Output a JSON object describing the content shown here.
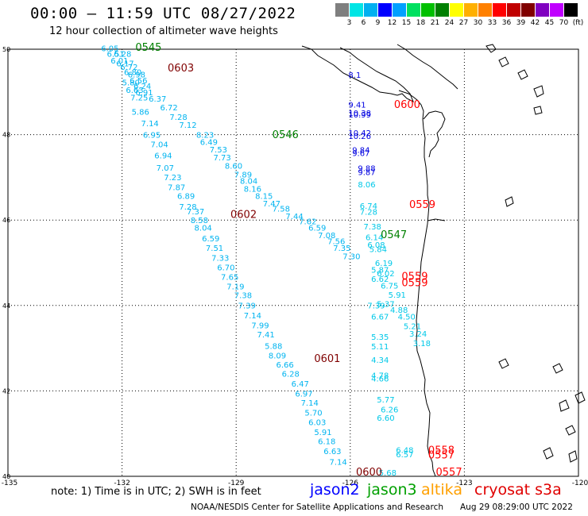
{
  "title": "00:00 – 11:59 UTC 08/27/2022",
  "subtitle": "12 hour collection of altimeter wave heights",
  "colorbar": {
    "colors": [
      "#7f7f7f",
      "#00e5e5",
      "#00b0f0",
      "#0000ff",
      "#00a0ff",
      "#00e060",
      "#00c000",
      "#008000",
      "#ffff00",
      "#ffb000",
      "#ff8000",
      "#ff0000",
      "#c00000",
      "#800000",
      "#8000c0",
      "#c000ff",
      "#000000"
    ],
    "labels": [
      "3",
      "6",
      "9",
      "12",
      "15",
      "18",
      "21",
      "24",
      "27",
      "30",
      "33",
      "36",
      "39",
      "42",
      "45",
      "70",
      "(ft)"
    ]
  },
  "axes": {
    "lon_labels": [
      "-135",
      "-132",
      "-129",
      "-126",
      "-123",
      "-120"
    ],
    "lat_labels": [
      "50",
      "48",
      "46",
      "44",
      "42",
      "40"
    ]
  },
  "tracks": [
    {
      "name": "altika",
      "color": "#00b4f0",
      "labels": [
        {
          "text": "6.05",
          "lon": -132.55,
          "lat": 49.95
        },
        {
          "text": "6.51",
          "lon": -132.4,
          "lat": 49.82
        },
        {
          "text": "6.28",
          "lon": -132.22,
          "lat": 49.82
        },
        {
          "text": "6.01",
          "lon": -132.3,
          "lat": 49.67
        },
        {
          "text": "6.17",
          "lon": -132.15,
          "lat": 49.6
        },
        {
          "text": "6.72",
          "lon": -132.05,
          "lat": 49.52
        },
        {
          "text": "6.80",
          "lon": -131.95,
          "lat": 49.4
        },
        {
          "text": "6.98",
          "lon": -131.85,
          "lat": 49.34
        },
        {
          "text": "6.56",
          "lon": -131.8,
          "lat": 49.2
        },
        {
          "text": "5.80",
          "lon": -132.0,
          "lat": 49.15
        },
        {
          "text": "6.24",
          "lon": -131.7,
          "lat": 49.07
        },
        {
          "text": "6.63",
          "lon": -131.9,
          "lat": 48.98
        },
        {
          "text": "6.91",
          "lon": -131.65,
          "lat": 48.92
        },
        {
          "text": "7.25",
          "lon": -131.78,
          "lat": 48.8
        },
        {
          "text": "6.37",
          "lon": -131.3,
          "lat": 48.77
        },
        {
          "text": "6.72",
          "lon": -131.0,
          "lat": 48.57
        },
        {
          "text": "5.86",
          "lon": -131.75,
          "lat": 48.47
        },
        {
          "text": "7.28",
          "lon": -130.75,
          "lat": 48.35
        },
        {
          "text": "7.14",
          "lon": -131.5,
          "lat": 48.2
        },
        {
          "text": "7.12",
          "lon": -130.5,
          "lat": 48.16
        },
        {
          "text": "6.95",
          "lon": -131.45,
          "lat": 47.93
        },
        {
          "text": "8.23",
          "lon": -130.05,
          "lat": 47.93
        },
        {
          "text": "7.04",
          "lon": -131.25,
          "lat": 47.7
        },
        {
          "text": "6.49",
          "lon": -129.95,
          "lat": 47.76
        },
        {
          "text": "7.53",
          "lon": -129.7,
          "lat": 47.58
        },
        {
          "text": "6.94",
          "lon": -131.15,
          "lat": 47.44
        },
        {
          "text": "7.73",
          "lon": -129.6,
          "lat": 47.4
        },
        {
          "text": "7.07",
          "lon": -131.1,
          "lat": 47.16
        },
        {
          "text": "8.60",
          "lon": -129.3,
          "lat": 47.2
        },
        {
          "text": "7.89",
          "lon": -129.05,
          "lat": 47.0
        },
        {
          "text": "7.23",
          "lon": -130.9,
          "lat": 46.93
        },
        {
          "text": "8.04",
          "lon": -128.9,
          "lat": 46.85
        },
        {
          "text": "7.87",
          "lon": -130.8,
          "lat": 46.7
        },
        {
          "text": "8.16",
          "lon": -128.8,
          "lat": 46.66
        },
        {
          "text": "6.89",
          "lon": -130.55,
          "lat": 46.5
        },
        {
          "text": "8.15",
          "lon": -128.5,
          "lat": 46.5
        },
        {
          "text": "7.47",
          "lon": -128.3,
          "lat": 46.32
        },
        {
          "text": "7.28",
          "lon": -130.5,
          "lat": 46.25
        },
        {
          "text": "7.58",
          "lon": -128.05,
          "lat": 46.2
        },
        {
          "text": "7.37",
          "lon": -130.3,
          "lat": 46.13
        },
        {
          "text": "7.44",
          "lon": -127.7,
          "lat": 46.02
        },
        {
          "text": "8.58",
          "lon": -130.2,
          "lat": 45.93
        },
        {
          "text": "7.62",
          "lon": -127.35,
          "lat": 45.9
        },
        {
          "text": "8.04",
          "lon": -130.1,
          "lat": 45.75
        },
        {
          "text": "6.59",
          "lon": -127.1,
          "lat": 45.75
        },
        {
          "text": "7.08",
          "lon": -126.85,
          "lat": 45.58
        },
        {
          "text": "6.59",
          "lon": -129.9,
          "lat": 45.5
        },
        {
          "text": "7.56",
          "lon": -126.6,
          "lat": 45.44
        },
        {
          "text": "7.51",
          "lon": -129.8,
          "lat": 45.28
        },
        {
          "text": "7.35",
          "lon": -126.45,
          "lat": 45.28
        },
        {
          "text": "7.30",
          "lon": -126.2,
          "lat": 45.08
        },
        {
          "text": "7.33",
          "lon": -129.65,
          "lat": 45.05
        },
        {
          "text": "6.70",
          "lon": -129.5,
          "lat": 44.82
        },
        {
          "text": "7.65",
          "lon": -129.4,
          "lat": 44.6
        },
        {
          "text": "7.19",
          "lon": -129.25,
          "lat": 44.38
        },
        {
          "text": "7.38",
          "lon": -129.05,
          "lat": 44.17
        },
        {
          "text": "7.39",
          "lon": -128.95,
          "lat": 43.93
        },
        {
          "text": "7.14",
          "lon": -128.8,
          "lat": 43.7
        },
        {
          "text": "7.99",
          "lon": -128.6,
          "lat": 43.47
        },
        {
          "text": "7.41",
          "lon": -128.45,
          "lat": 43.25
        },
        {
          "text": "5.88",
          "lon": -128.25,
          "lat": 42.98
        },
        {
          "text": "8.09",
          "lon": -128.15,
          "lat": 42.76
        },
        {
          "text": "6.66",
          "lon": -127.95,
          "lat": 42.55
        },
        {
          "text": "6.28",
          "lon": -127.8,
          "lat": 42.33
        },
        {
          "text": "6.47",
          "lon": -127.55,
          "lat": 42.1
        },
        {
          "text": "6.97",
          "lon": -127.45,
          "lat": 41.87
        },
        {
          "text": "7.14",
          "lon": -127.3,
          "lat": 41.65
        },
        {
          "text": "5.70",
          "lon": -127.2,
          "lat": 41.42
        },
        {
          "text": "6.03",
          "lon": -127.1,
          "lat": 41.2
        },
        {
          "text": "5.91",
          "lon": -126.95,
          "lat": 40.97
        },
        {
          "text": "6.18",
          "lon": -126.85,
          "lat": 40.75
        },
        {
          "text": "6.63",
          "lon": -126.7,
          "lat": 40.52
        },
        {
          "text": "7.14",
          "lon": -126.55,
          "lat": 40.27
        }
      ]
    },
    {
      "name": "jason2",
      "color": "#0000e0",
      "labels": [
        {
          "text": "9.41",
          "lon": -126.05,
          "lat": 48.63
        },
        {
          "text": "10.38",
          "lon": -126.05,
          "lat": 48.44
        },
        {
          "text": "10.99",
          "lon": -126.05,
          "lat": 48.4
        },
        {
          "text": "10.42",
          "lon": -126.05,
          "lat": 47.97
        },
        {
          "text": "10.26",
          "lon": -126.05,
          "lat": 47.9
        },
        {
          "text": "9.84",
          "lon": -125.95,
          "lat": 47.57
        },
        {
          "text": "9.67",
          "lon": -125.95,
          "lat": 47.5
        },
        {
          "text": "9.88",
          "lon": -125.8,
          "lat": 47.15
        },
        {
          "text": "9.87",
          "lon": -125.8,
          "lat": 47.05
        },
        {
          "text": "8.1",
          "lon": -126.05,
          "lat": 49.33
        }
      ]
    },
    {
      "name": "cyan-east",
      "color": "#00c8e8",
      "labels": [
        {
          "text": "8.06",
          "lon": -125.8,
          "lat": 46.77
        },
        {
          "text": "6.74",
          "lon": -125.75,
          "lat": 46.26
        },
        {
          "text": "7.28",
          "lon": -125.75,
          "lat": 46.12
        },
        {
          "text": "7.38",
          "lon": -125.65,
          "lat": 45.78
        },
        {
          "text": "6.14",
          "lon": -125.6,
          "lat": 45.53
        },
        {
          "text": "6.08",
          "lon": -125.55,
          "lat": 45.35
        },
        {
          "text": "5.84",
          "lon": -125.5,
          "lat": 45.25
        },
        {
          "text": "6.19",
          "lon": -125.35,
          "lat": 44.93
        },
        {
          "text": "5.87",
          "lon": -125.45,
          "lat": 44.77
        },
        {
          "text": "6.02",
          "lon": -125.3,
          "lat": 44.68
        },
        {
          "text": "6.62",
          "lon": -125.45,
          "lat": 44.55
        },
        {
          "text": "6.75",
          "lon": -125.2,
          "lat": 44.4
        },
        {
          "text": "5.91",
          "lon": -125.0,
          "lat": 44.18
        },
        {
          "text": "5.37",
          "lon": -125.3,
          "lat": 43.97
        },
        {
          "text": "7.39",
          "lon": -125.55,
          "lat": 43.93
        },
        {
          "text": "4.88",
          "lon": -124.95,
          "lat": 43.83
        },
        {
          "text": "6.67",
          "lon": -125.45,
          "lat": 43.67
        },
        {
          "text": "4.50",
          "lon": -124.75,
          "lat": 43.67
        },
        {
          "text": "5.21",
          "lon": -124.6,
          "lat": 43.45
        },
        {
          "text": "3.24",
          "lon": -124.45,
          "lat": 43.27
        },
        {
          "text": "5.35",
          "lon": -125.45,
          "lat": 43.2
        },
        {
          "text": "3.18",
          "lon": -124.35,
          "lat": 43.05
        },
        {
          "text": "5.11",
          "lon": -125.45,
          "lat": 42.97
        },
        {
          "text": "4.34",
          "lon": -125.45,
          "lat": 42.66
        },
        {
          "text": "4.78",
          "lon": -125.45,
          "lat": 42.3
        },
        {
          "text": "4.66",
          "lon": -125.45,
          "lat": 42.22
        },
        {
          "text": "5.77",
          "lon": -125.3,
          "lat": 41.73
        },
        {
          "text": "6.26",
          "lon": -125.2,
          "lat": 41.5
        },
        {
          "text": "6.60",
          "lon": -125.3,
          "lat": 41.3
        },
        {
          "text": "6.48",
          "lon": -124.8,
          "lat": 40.55
        },
        {
          "text": "6.57",
          "lon": -124.8,
          "lat": 40.45
        },
        {
          "text": "5.68",
          "lon": -125.25,
          "lat": 40.02
        }
      ]
    },
    {
      "name": "jason3-times",
      "color": "#008000",
      "labels": [
        {
          "text": "0545",
          "lon": -131.65,
          "lat": 49.96
        },
        {
          "text": "0546",
          "lon": -128.05,
          "lat": 47.92
        },
        {
          "text": "0547",
          "lon": -125.2,
          "lat": 45.58
        }
      ]
    },
    {
      "name": "darkred-times",
      "color": "#800000",
      "labels": [
        {
          "text": "0603",
          "lon": -130.8,
          "lat": 49.48
        },
        {
          "text": "0602",
          "lon": -129.15,
          "lat": 46.05
        },
        {
          "text": "0601",
          "lon": -126.95,
          "lat": 42.68
        },
        {
          "text": "0600",
          "lon": -125.85,
          "lat": 40.02
        }
      ]
    },
    {
      "name": "cryosat-times",
      "color": "#ff0000",
      "labels": [
        {
          "text": "0600",
          "lon": -124.85,
          "lat": 48.62
        },
        {
          "text": "0559",
          "lon": -124.45,
          "lat": 46.28
        },
        {
          "text": "0559",
          "lon": -124.65,
          "lat": 44.6
        },
        {
          "text": "0559",
          "lon": -124.65,
          "lat": 44.45
        },
        {
          "text": "0558",
          "lon": -123.95,
          "lat": 40.53
        },
        {
          "text": "0557",
          "lon": -123.95,
          "lat": 40.42
        },
        {
          "text": "0557",
          "lon": -123.75,
          "lat": 40.02
        }
      ]
    }
  ],
  "footnote": "note: 1) Time is in UTC; 2) SWH is in feet",
  "satellites": [
    {
      "name": "jason2",
      "color": "#0000ff"
    },
    {
      "name": "jason3",
      "color": "#00a000"
    },
    {
      "name": "altika",
      "color": "#ffa000"
    },
    {
      "name": "cryosat s3a",
      "color": "#e00000"
    }
  ],
  "footer_left": "NOAA/NESDIS Center for Satellite Applications and Research",
  "footer_right": "Aug 29 08:29:00 UTC 2022"
}
